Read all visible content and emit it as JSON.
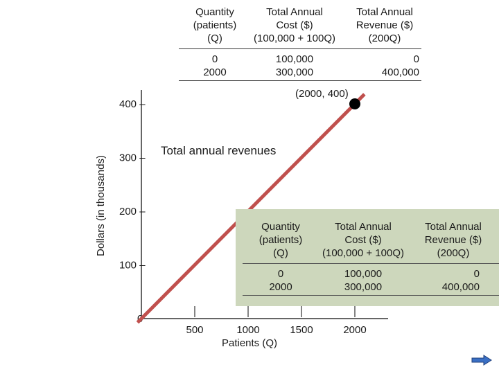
{
  "top_table": {
    "headers": [
      "Quantity\n(patients)\n(Q)",
      "Total Annual\nCost ($)\n(100,000 + 100Q)",
      "Total Annual\nRevenue ($)\n(200Q)"
    ],
    "col_q": "0\n2000",
    "col_cost": "100,000\n300,000",
    "col_rev": "0\n400,000"
  },
  "green_table": {
    "headers": [
      "Quantity\n(patients)\n(Q)",
      "Total Annual\nCost ($)\n(100,000 + 100Q)",
      "Total Annual\nRevenue ($)\n(200Q)"
    ],
    "col_q": "0\n2000",
    "col_cost": "100,000\n300,000",
    "col_rev": "0\n400,000",
    "bg_color": "#cdd7bc"
  },
  "chart_data": {
    "type": "line",
    "xlabel": "Patients (Q)",
    "ylabel": "Dollars (in thousands)",
    "x_ticks": [
      500,
      1000,
      1500,
      2000
    ],
    "x_tick_labels": [
      "500",
      "1000",
      "1500",
      "2000"
    ],
    "y_ticks": [
      0,
      100,
      200,
      300,
      400
    ],
    "y_tick_labels": [
      "0",
      "100 –",
      "200 –",
      "300 –",
      "400 –"
    ],
    "xlim": [
      0,
      2000
    ],
    "ylim": [
      0,
      400
    ],
    "series": [
      {
        "name": "Total annual revenues",
        "color": "#c0504d",
        "x": [
          0,
          2000
        ],
        "y": [
          0,
          400
        ]
      }
    ],
    "point": {
      "x": 2000,
      "y": 400,
      "label": "(2000, 400)"
    },
    "series_label": "Total annual revenues"
  },
  "nav": {
    "next_icon": "arrow-right-icon",
    "color": "#3a6fc4"
  }
}
